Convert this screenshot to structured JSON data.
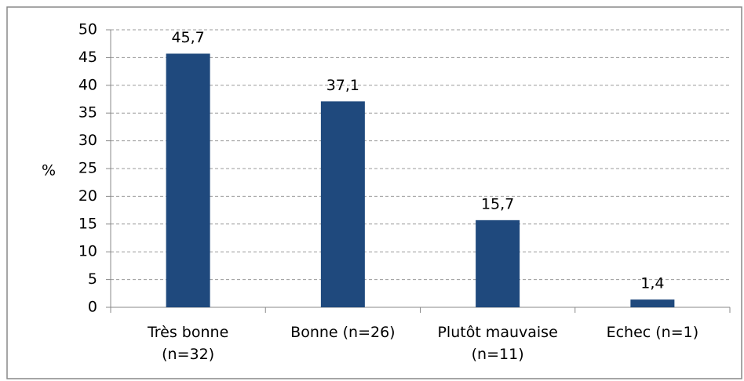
{
  "chart_data": {
    "type": "bar",
    "y_label": "%",
    "categories": [
      "Très bonne (n=32)",
      "Bonne (n=26)",
      "Plutôt mauvaise (n=11)",
      "Echec (n=1)"
    ],
    "values": [
      45.7,
      37.1,
      15.7,
      1.4
    ],
    "value_labels": [
      "45,7",
      "37,1",
      "15,7",
      "1,4"
    ],
    "color": "#1f497d",
    "ylim": [
      0,
      50
    ],
    "yticks": [
      0,
      5,
      10,
      15,
      20,
      25,
      30,
      35,
      40,
      45,
      50
    ],
    "grid": true
  }
}
